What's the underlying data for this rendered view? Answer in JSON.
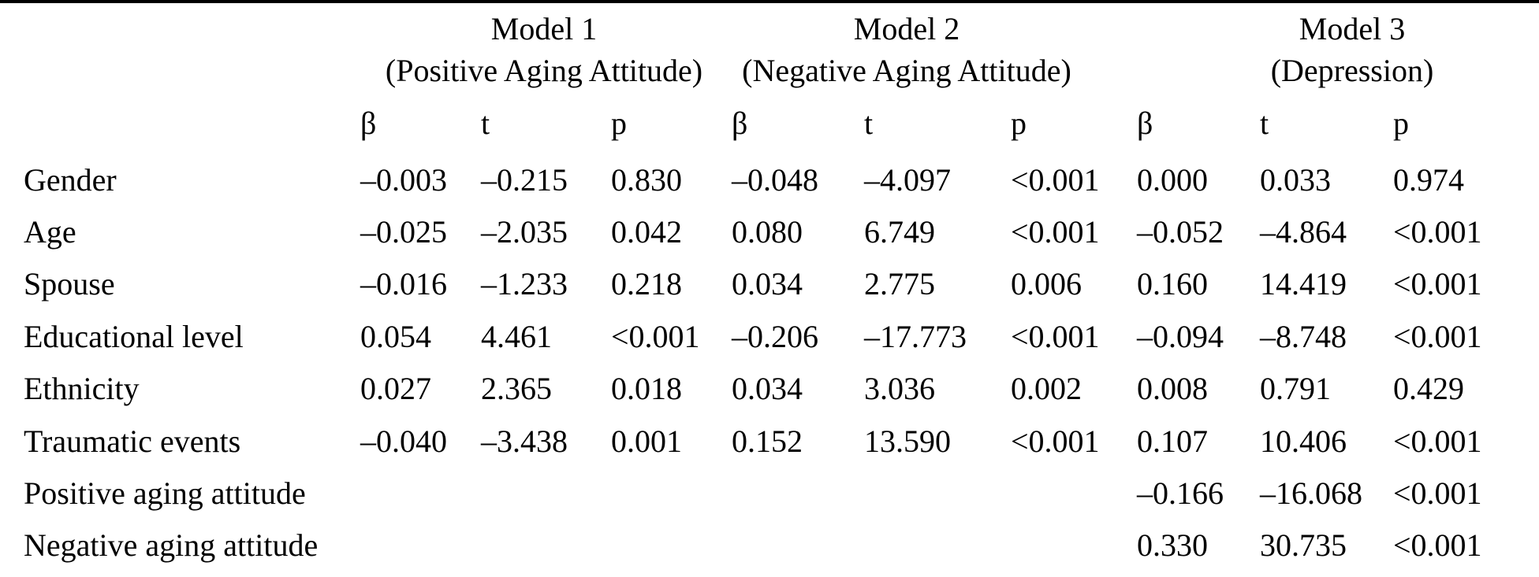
{
  "table": {
    "groups": [
      {
        "line1": "Model 1",
        "line2": "(Positive Aging Attitude)"
      },
      {
        "line1": "Model 2",
        "line2": "(Negative Aging Attitude)"
      },
      {
        "line1": "Model 3",
        "line2": "(Depression)"
      }
    ],
    "col_headers": [
      "β",
      "t",
      "p",
      "β",
      "t",
      "p",
      "β",
      "t",
      "p"
    ],
    "rows": [
      {
        "label": "Gender",
        "cells": [
          "–0.003",
          "–0.215",
          "0.830",
          "–0.048",
          "–4.097",
          "<0.001",
          "0.000",
          "0.033",
          "0.974"
        ]
      },
      {
        "label": "Age",
        "cells": [
          "–0.025",
          "–2.035",
          "0.042",
          "0.080",
          "6.749",
          "<0.001",
          "–0.052",
          "–4.864",
          "<0.001"
        ]
      },
      {
        "label": "Spouse",
        "cells": [
          "–0.016",
          "–1.233",
          "0.218",
          "0.034",
          "2.775",
          "0.006",
          "0.160",
          "14.419",
          "<0.001"
        ]
      },
      {
        "label": "Educational level",
        "cells": [
          "0.054",
          "4.461",
          "<0.001",
          "–0.206",
          "–17.773",
          "<0.001",
          "–0.094",
          "–8.748",
          "<0.001"
        ]
      },
      {
        "label": "Ethnicity",
        "cells": [
          "0.027",
          "2.365",
          "0.018",
          "0.034",
          "3.036",
          "0.002",
          "0.008",
          "0.791",
          "0.429"
        ]
      },
      {
        "label": "Traumatic events",
        "cells": [
          "–0.040",
          "–3.438",
          "0.001",
          "0.152",
          "13.590",
          "<0.001",
          "0.107",
          "10.406",
          "<0.001"
        ]
      },
      {
        "label": "Positive aging attitude",
        "cells": [
          "",
          "",
          "",
          "",
          "",
          "",
          "–0.166",
          "–16.068",
          "<0.001"
        ]
      },
      {
        "label": "Negative aging attitude",
        "cells": [
          "",
          "",
          "",
          "",
          "",
          "",
          "0.330",
          "30.735",
          "<0.001"
        ]
      }
    ]
  },
  "colors": {
    "background": "#ffffff",
    "text": "#000000",
    "rule": "#000000"
  }
}
